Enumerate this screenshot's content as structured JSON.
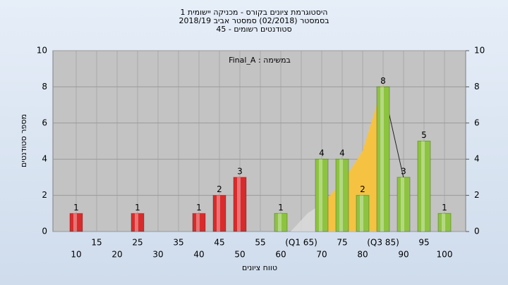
{
  "chart_data": {
    "type": "bar",
    "title": [
      "היסטוגרמת ציונים בקורס - מכניקה יישומית 1",
      "בסמסטר  (02/2018)  סמסטר אביב 2018/19",
      "סטודנטים רשומים - 45"
    ],
    "annotation": "במשימה : Final_A",
    "x_label": "טווח ציונים",
    "y_label": "מספר סטודנטים",
    "categories": [
      "10",
      "15",
      "20",
      "25",
      "30",
      "35",
      "40",
      "45",
      "50",
      "55",
      "60",
      "(Q1 65)",
      "70",
      "75",
      "80",
      "(Q3 85)",
      "90",
      "95",
      "100"
    ],
    "values": [
      1,
      0,
      0,
      1,
      0,
      0,
      1,
      2,
      3,
      0,
      1,
      0,
      4,
      4,
      2,
      8,
      3,
      5,
      1
    ],
    "colors": [
      "#d92b2b",
      "#d92b2b",
      "#d92b2b",
      "#d92b2b",
      "#d92b2b",
      "#d92b2b",
      "#d92b2b",
      "#d92b2b",
      "#d92b2b",
      "#d92b2b",
      "#8dc43f",
      "#8dc43f",
      "#8dc43f",
      "#8dc43f",
      "#8dc43f",
      "#8dc43f",
      "#8dc43f",
      "#8dc43f",
      "#8dc43f"
    ],
    "ylim": [
      0,
      10
    ],
    "yticks": [
      0,
      2,
      4,
      6,
      8,
      10
    ],
    "y2lim": [
      0,
      10
    ],
    "y2ticks": [
      0,
      2,
      4,
      6,
      8,
      10
    ],
    "grid": true
  }
}
